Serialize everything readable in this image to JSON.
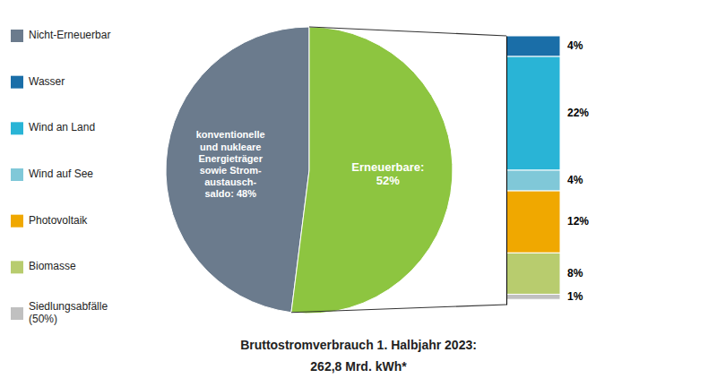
{
  "chart_data": [
    {
      "type": "pie",
      "title": "Bruttostromverbrauch 1. Halbjahr 2023:",
      "subtitle": "262,8 Mrd. kWh*",
      "categories": [
        "Nicht-Erneuerbar",
        null
      ],
      "values": [
        48,
        52
      ],
      "value_labels": [
        "konventionelle\nund nukleare\nEnergieträger\nsowie Strom-\naustausch-\nsaldo: 48%",
        "Erneuerbare:\n52%"
      ],
      "colors": [
        "#6b7b8d",
        "#8dc540"
      ],
      "data_labels": true,
      "legend": "left"
    },
    {
      "type": "bar",
      "stacked": true,
      "data_labels": true,
      "legend": "left",
      "tick_labels": false,
      "categories": [
        null
      ],
      "ylim": [
        0,
        52
      ],
      "series": [
        {
          "name": "Wasser",
          "color": "#1a6ea8",
          "values": [
            4
          ],
          "value_labels": [
            "4%"
          ]
        },
        {
          "name": "Wind an Land",
          "color": "#29b4d6",
          "values": [
            22
          ],
          "value_labels": [
            "22%"
          ]
        },
        {
          "name": "Wind auf See",
          "color": "#80c8d8",
          "values": [
            4
          ],
          "value_labels": [
            "4%"
          ]
        },
        {
          "name": "Photovoltaik",
          "color": "#f0a800",
          "values": [
            12
          ],
          "value_labels": [
            "12%"
          ]
        },
        {
          "name": "Biomasse",
          "color": "#b8cc6e",
          "values": [
            8
          ],
          "value_labels": [
            "8%"
          ]
        },
        {
          "name": "Siedlungsabfälle\n(50%)",
          "color": "#c0c0c0",
          "values": [
            1
          ],
          "value_labels": [
            "1%"
          ]
        }
      ]
    }
  ]
}
